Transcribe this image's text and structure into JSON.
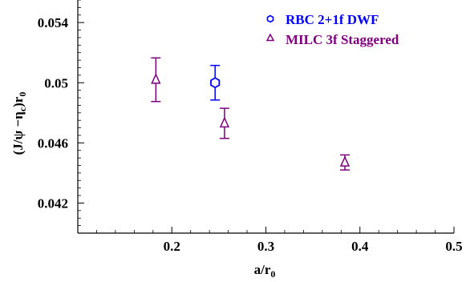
{
  "chart_data": {
    "type": "scatter",
    "xlabel": "a/r",
    "xlabel_sub": "0",
    "ylabel": "(J/ψ −η",
    "ylabel_sub1": "c",
    "ylabel_mid": ")r",
    "ylabel_sub2": "0",
    "xlim": [
      0.1,
      0.5
    ],
    "ylim": [
      0.04,
      0.0555
    ],
    "x_ticks": [
      0.2,
      0.3,
      0.4,
      0.5
    ],
    "x_tick_labels": [
      "0.2",
      "0.3",
      "0.4",
      "0.5"
    ],
    "y_ticks": [
      0.042,
      0.046,
      0.05,
      0.054
    ],
    "y_tick_labels": [
      "0.042",
      "0.046",
      "0.05",
      "0.054"
    ],
    "grid": false,
    "legend_position": "top-right",
    "series": [
      {
        "name": "RBC 2+1f DWF",
        "marker": "hexagon",
        "color": "#0000ff",
        "points": [
          {
            "x": 0.246,
            "y": 0.05,
            "err": 0.00115
          }
        ]
      },
      {
        "name": "MILC 3f Staggered",
        "marker": "triangle",
        "color": "#800080",
        "points": [
          {
            "x": 0.183,
            "y": 0.0502,
            "err": 0.00145
          },
          {
            "x": 0.256,
            "y": 0.0473,
            "err": 0.001
          },
          {
            "x": 0.384,
            "y": 0.0447,
            "err": 0.0005
          }
        ]
      }
    ]
  }
}
